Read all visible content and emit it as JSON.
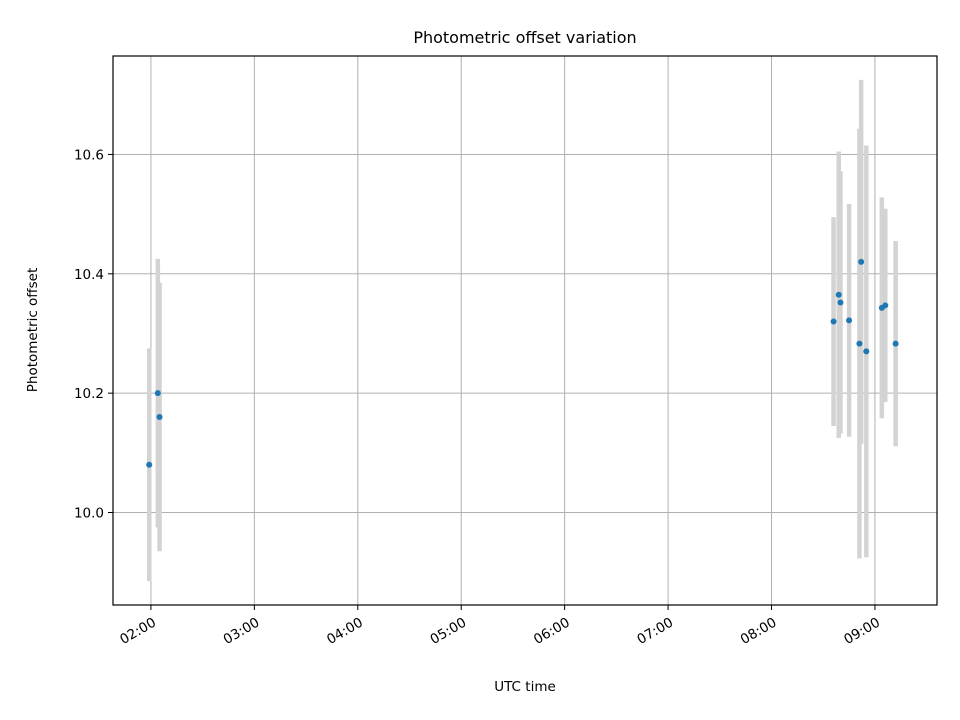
{
  "chart_data": {
    "type": "scatter",
    "title": "Photometric offset variation",
    "xlabel": "UTC time",
    "ylabel": "Photometric offset",
    "x_is_time": true,
    "x_range": [
      "01:38",
      "09:36"
    ],
    "x_ticks": [
      "02:00",
      "03:00",
      "04:00",
      "05:00",
      "06:00",
      "07:00",
      "08:00",
      "09:00"
    ],
    "ylim": [
      9.845,
      10.765
    ],
    "y_ticks": [
      "10.0",
      "10.2",
      "10.4",
      "10.6"
    ],
    "grid": true,
    "colors": {
      "point": "#1f77b4",
      "errorbar": "#d3d3d3"
    },
    "series": [
      {
        "points": [
          {
            "x": "01:59",
            "y": 10.08,
            "err": 0.195
          },
          {
            "x": "02:04",
            "y": 10.2,
            "err": 0.225
          },
          {
            "x": "02:05",
            "y": 10.16,
            "err": 0.225
          },
          {
            "x": "08:36",
            "y": 10.32,
            "err": 0.175
          },
          {
            "x": "08:39",
            "y": 10.365,
            "err": 0.24
          },
          {
            "x": "08:40",
            "y": 10.352,
            "err": 0.22
          },
          {
            "x": "08:45",
            "y": 10.322,
            "err": 0.195
          },
          {
            "x": "08:51",
            "y": 10.283,
            "err": 0.36
          },
          {
            "x": "08:52",
            "y": 10.42,
            "err": 0.305
          },
          {
            "x": "08:55",
            "y": 10.27,
            "err": 0.345
          },
          {
            "x": "09:04",
            "y": 10.343,
            "err": 0.185
          },
          {
            "x": "09:06",
            "y": 10.347,
            "err": 0.162
          },
          {
            "x": "09:12",
            "y": 10.283,
            "err": 0.172
          }
        ]
      }
    ]
  }
}
